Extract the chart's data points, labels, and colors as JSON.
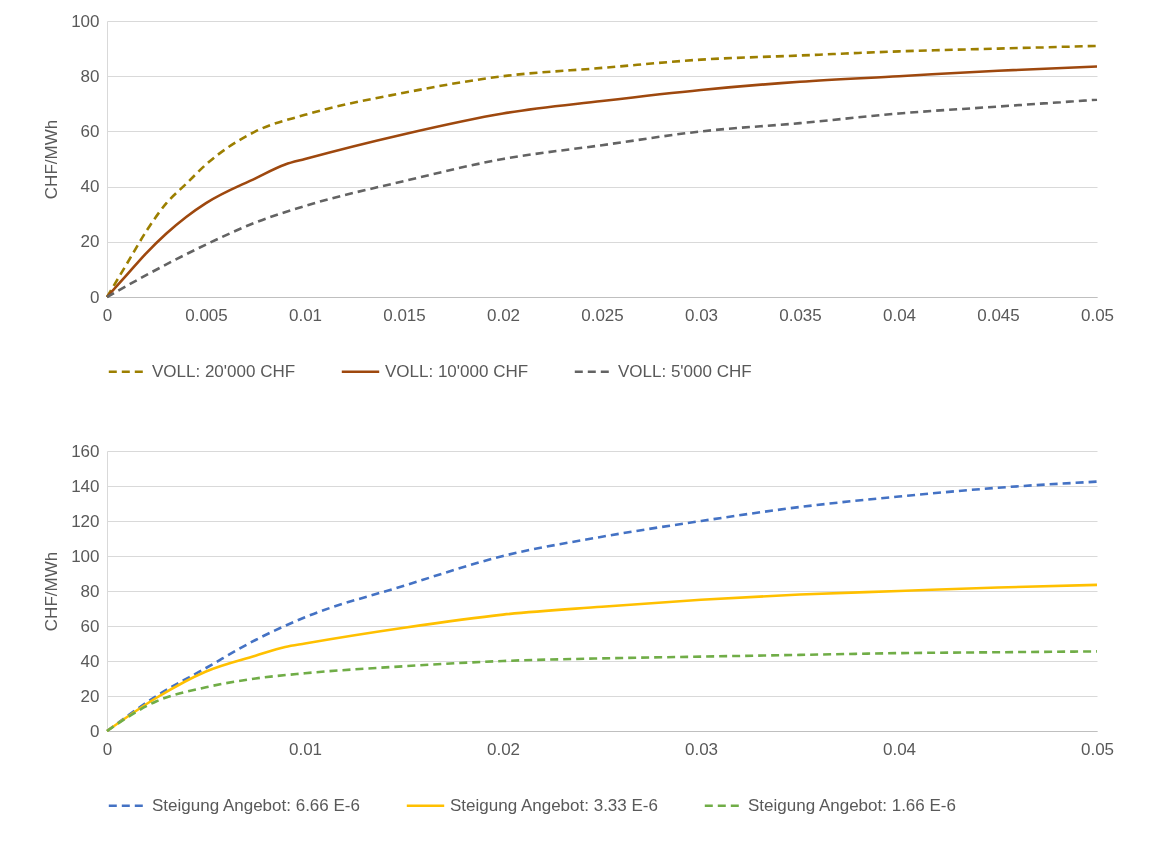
{
  "chart_data": [
    {
      "type": "line",
      "ylabel": "CHF/MWh",
      "xlim": [
        0,
        0.05
      ],
      "xticks": [
        0,
        0.005,
        0.01,
        0.015,
        0.02,
        0.025,
        0.03,
        0.035,
        0.04,
        0.045,
        0.05
      ],
      "ylim": [
        0,
        100
      ],
      "yticks": [
        0,
        20,
        40,
        60,
        80,
        100
      ],
      "grid": "y",
      "legend": "bottom",
      "series": [
        {
          "name": "VOLL: 20'000 CHF",
          "color": "#9c7f00",
          "line_style": "dashed",
          "x": [
            0,
            0.001,
            0.002,
            0.003,
            0.004,
            0.005,
            0.0075,
            0.01,
            0.015,
            0.02,
            0.025,
            0.03,
            0.035,
            0.04,
            0.045,
            0.05
          ],
          "values": [
            0,
            12,
            24,
            34,
            41,
            48,
            60,
            66,
            74,
            80,
            83,
            86,
            87.5,
            89,
            90,
            91
          ]
        },
        {
          "name": "VOLL: 10'000 CHF",
          "color": "#9e480e",
          "line_style": "solid",
          "x": [
            0,
            0.001,
            0.002,
            0.003,
            0.004,
            0.005,
            0.0075,
            0.009,
            0.01,
            0.015,
            0.02,
            0.025,
            0.03,
            0.035,
            0.04,
            0.045,
            0.05
          ],
          "values": [
            0,
            8,
            16,
            23,
            29,
            34,
            43,
            48,
            50,
            59,
            66.5,
            71,
            75,
            78,
            80,
            82,
            83.5
          ]
        },
        {
          "name": "VOLL: 5'000 CHF",
          "color": "#636363",
          "line_style": "dashed",
          "x": [
            0,
            0.002,
            0.005,
            0.0075,
            0.01,
            0.015,
            0.02,
            0.025,
            0.03,
            0.035,
            0.04,
            0.045,
            0.05
          ],
          "values": [
            0,
            8,
            19,
            27,
            33,
            42,
            50,
            55,
            60,
            63,
            66.5,
            69,
            71.5
          ]
        }
      ]
    },
    {
      "type": "line",
      "ylabel": "CHF/MWh",
      "xlim": [
        0,
        0.05
      ],
      "xticks": [
        0,
        0.01,
        0.02,
        0.03,
        0.04,
        0.05
      ],
      "ylim": [
        0,
        160
      ],
      "yticks": [
        0,
        20,
        40,
        60,
        80,
        100,
        120,
        140,
        160
      ],
      "grid": "y",
      "legend": "bottom",
      "series": [
        {
          "name": "Steigung Angebot: 6.66 E-6",
          "color": "#4472c4",
          "line_style": "dashed",
          "x": [
            0,
            0.0025,
            0.005,
            0.0075,
            0.01,
            0.015,
            0.02,
            0.025,
            0.03,
            0.035,
            0.04,
            0.045,
            0.05
          ],
          "values": [
            0,
            20,
            36,
            52,
            65,
            83,
            100,
            111,
            120,
            128,
            134,
            139,
            142.5
          ]
        },
        {
          "name": "Steigung Angebot: 3.33 E-6",
          "color": "#ffc000",
          "line_style": "solid",
          "x": [
            0,
            0.0025,
            0.005,
            0.0075,
            0.009,
            0.01,
            0.015,
            0.02,
            0.025,
            0.03,
            0.035,
            0.04,
            0.045,
            0.05
          ],
          "values": [
            0,
            19,
            34,
            43,
            48,
            50,
            59,
            66.5,
            71,
            75,
            78,
            80,
            82,
            83.5
          ]
        },
        {
          "name": "Steigung Angebot: 1.66 E-6",
          "color": "#70ad47",
          "line_style": "dashed",
          "x": [
            0,
            0.0025,
            0.005,
            0.0075,
            0.01,
            0.015,
            0.02,
            0.025,
            0.03,
            0.035,
            0.04,
            0.045,
            0.05
          ],
          "values": [
            0,
            17,
            25,
            30,
            33,
            37,
            40,
            41.5,
            42.5,
            43.5,
            44.5,
            45,
            45.5
          ]
        }
      ]
    }
  ]
}
